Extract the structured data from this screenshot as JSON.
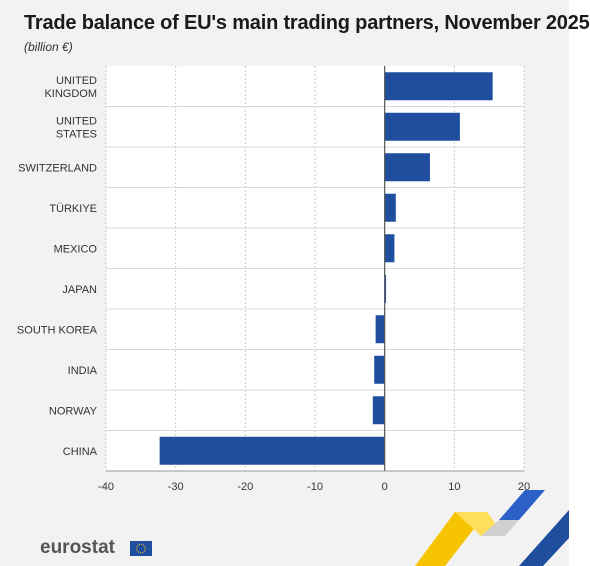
{
  "chart_data": {
    "type": "bar",
    "orientation": "horizontal",
    "title": "Trade balance of EU's main trading partners, November 2025",
    "subtitle": "(billion €)",
    "categories": [
      [
        "UNITED",
        "KINGDOM"
      ],
      [
        "UNITED",
        "STATES"
      ],
      [
        "SWITZERLAND"
      ],
      [
        "TÜRKIYE"
      ],
      [
        "MEXICO"
      ],
      [
        "JAPAN"
      ],
      [
        "SOUTH KOREA"
      ],
      [
        "INDIA"
      ],
      [
        "NORWAY"
      ],
      [
        "CHINA"
      ]
    ],
    "values": [
      15.5,
      10.8,
      6.5,
      1.6,
      1.4,
      0.2,
      -1.3,
      -1.5,
      -1.7,
      -32.3
    ],
    "xlim": [
      -40,
      20
    ],
    "xticks": [
      -40,
      -30,
      -20,
      -10,
      0,
      10,
      20
    ],
    "grid": true,
    "bar_color": "#1f4e9f"
  },
  "branding": {
    "logo_text": "eurostat"
  }
}
